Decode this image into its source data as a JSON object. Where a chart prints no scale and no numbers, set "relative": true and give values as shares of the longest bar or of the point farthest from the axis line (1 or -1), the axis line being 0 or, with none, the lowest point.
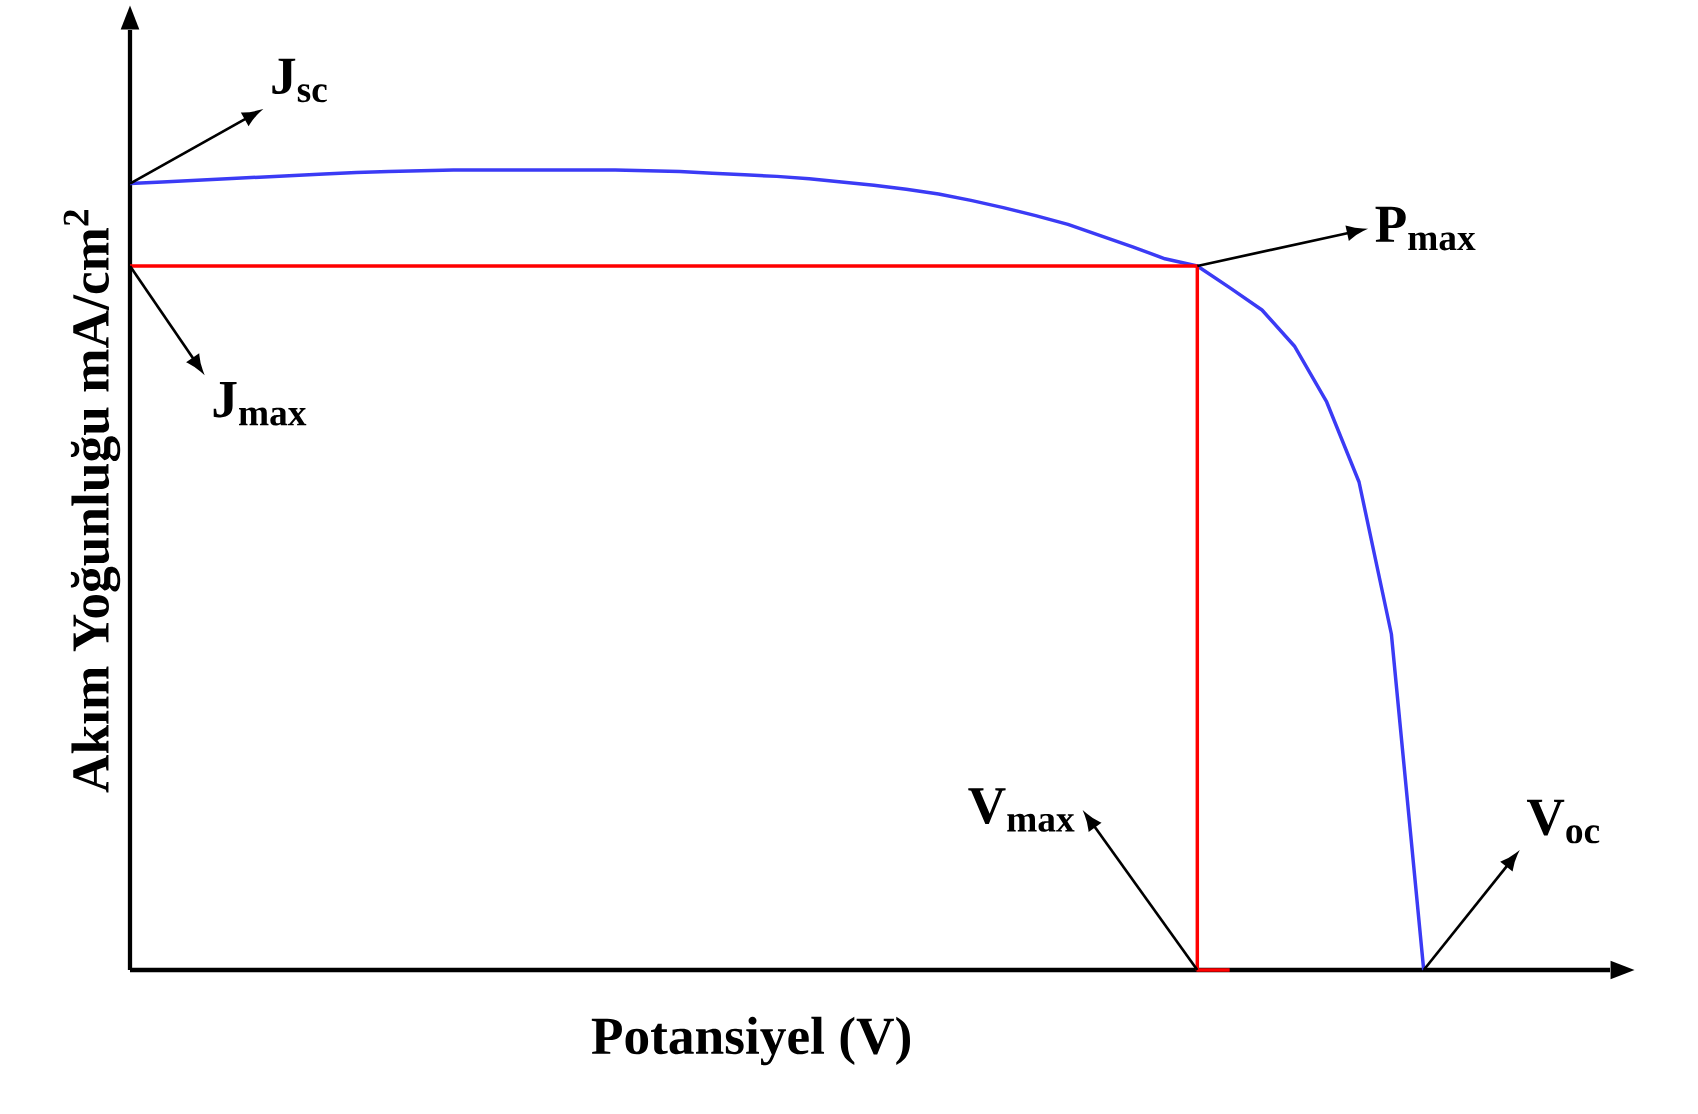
{
  "chart_data": {
    "type": "line",
    "relative": true,
    "xlabel": "Potansiyel (V)",
    "ylabel": "Akım Yoğunluğu mA/cm$^{2}$",
    "categories": [
      null,
      null,
      null,
      null,
      null,
      null,
      null,
      null,
      null,
      null,
      null,
      null,
      null,
      null,
      null,
      null,
      null,
      null,
      null,
      null,
      null,
      null,
      null,
      null,
      null,
      null,
      null,
      null,
      null,
      null,
      null,
      null,
      null,
      null,
      null,
      null,
      null,
      null,
      null,
      null,
      null
    ],
    "series": [
      {
        "color": "#3b3bf5",
        "values": [
          0.983,
          0.985,
          0.987,
          0.989,
          0.991,
          0.993,
          0.995,
          0.997,
          0.998,
          0.999,
          1.0,
          1.0,
          1.0,
          1.0,
          1.0,
          1.0,
          0.999,
          0.998,
          0.996,
          0.994,
          0.992,
          0.989,
          0.985,
          0.981,
          0.976,
          0.97,
          0.962,
          0.953,
          0.943,
          0.932,
          0.918,
          0.904,
          0.889,
          0.88,
          0.853,
          0.825,
          0.78,
          0.71,
          0.61,
          0.42,
          0
        ]
      },
      {
        "type": "step",
        "color": "#ff0000",
        "values": [
          0.88,
          0.88,
          0.88,
          0.88,
          0.88,
          0.88,
          0.88,
          0.88,
          0.88,
          0.88,
          0.88,
          0.88,
          0.88,
          0.88,
          0.88,
          0.88,
          0.88,
          0.88,
          0.88,
          0.88,
          0.88,
          0.88,
          0.88,
          0.88,
          0.88,
          0.88,
          0.88,
          0.88,
          0.88,
          0.88,
          0.88,
          0.88,
          0.88,
          0.88,
          0,
          null,
          null,
          null,
          null,
          null,
          null
        ]
      }
    ],
    "annotations": [
      "J$_{sc}$",
      "J$_{max}$",
      "P$_{max}$",
      "V$_{max}$",
      "V$_{oc}$"
    ]
  }
}
